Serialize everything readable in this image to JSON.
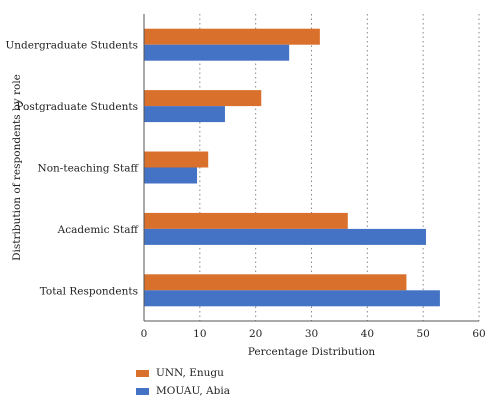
{
  "chart_data": {
    "type": "bar",
    "orientation": "horizontal",
    "categories": [
      "Undergraduate Students",
      "Postgraduate Students",
      "Non-teaching Staff",
      "Academic Staff",
      "Total Respondents"
    ],
    "series": [
      {
        "name": "UNN, Enugu",
        "color": "#D9702B",
        "values": [
          31.5,
          21,
          11.5,
          36.5,
          47
        ]
      },
      {
        "name": "MOUAU, Abia",
        "color": "#4472C4",
        "values": [
          26,
          14.5,
          9.5,
          50.5,
          53
        ]
      }
    ],
    "xlabel": "Percentage Distribution",
    "ylabel": "Distribution of respondents by role",
    "xlim": [
      0,
      60
    ],
    "xticks": [
      0,
      10,
      20,
      30,
      40,
      50,
      60
    ],
    "grid": "vertical dotted",
    "legend_position": "bottom-left"
  }
}
